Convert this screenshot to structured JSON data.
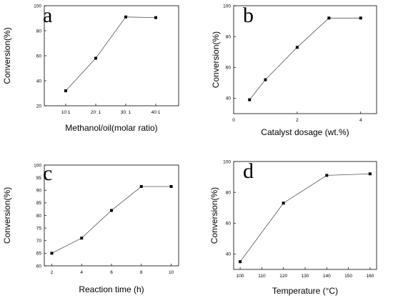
{
  "chart_data": [
    {
      "type": "line",
      "panel_label": "a",
      "title": "",
      "xlabel": "Methanol/oil(molar ratio)",
      "ylabel": "Conversion(%)",
      "categories": [
        "10:1",
        "20: 1",
        "30: 1",
        "40:1"
      ],
      "values": [
        32,
        58,
        91,
        90.5
      ],
      "ylim": [
        20,
        100
      ],
      "yticks": [
        20,
        40,
        60,
        80,
        100
      ],
      "ytick_labels": [
        "20",
        "40",
        "60",
        "80",
        "100"
      ],
      "grid": false,
      "marker": "square"
    },
    {
      "type": "line",
      "panel_label": "b",
      "title": "",
      "xlabel": "Catalyst dosage (wt.%)",
      "ylabel": "Conversion(%)",
      "x": [
        0.5,
        1,
        2,
        3,
        4
      ],
      "values": [
        39,
        52,
        73,
        92,
        92
      ],
      "xlim": [
        0,
        4.5
      ],
      "xticks": [
        0,
        2,
        4
      ],
      "ylim": [
        30,
        100
      ],
      "yticks": [
        40,
        60,
        80,
        100
      ],
      "grid": false,
      "marker": "square"
    },
    {
      "type": "line",
      "panel_label": "c",
      "title": "",
      "xlabel": "Reaction time (h)",
      "ylabel": "Conversion(%)",
      "x": [
        2,
        4,
        6,
        8,
        10
      ],
      "values": [
        65,
        71,
        82,
        91.5,
        91.5
      ],
      "xlim": [
        1.5,
        10.5
      ],
      "xticks": [
        2,
        4,
        6,
        8,
        10
      ],
      "ylim": [
        60,
        100
      ],
      "yticks": [
        60,
        65,
        70,
        75,
        80,
        85,
        90,
        95,
        100
      ],
      "grid": false,
      "marker": "square"
    },
    {
      "type": "line",
      "panel_label": "d",
      "title": "",
      "xlabel": "Temperature (°C)",
      "ylabel": "Conversion(%)",
      "x": [
        100,
        120,
        140,
        160
      ],
      "values": [
        35,
        73,
        91,
        92
      ],
      "xlim": [
        97,
        163
      ],
      "xticks": [
        100,
        110,
        120,
        130,
        140,
        150,
        160
      ],
      "ylim": [
        30,
        100
      ],
      "yticks": [
        40,
        60,
        80,
        100
      ],
      "grid": false,
      "marker": "square"
    }
  ]
}
